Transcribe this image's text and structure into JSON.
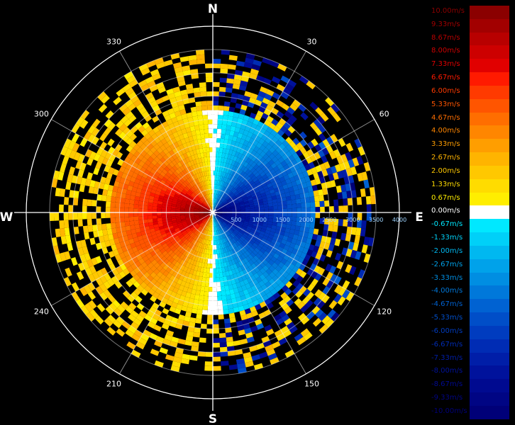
{
  "chart_data": {
    "type": "polar-heatmap",
    "cardinals": {
      "north": "N",
      "east": "E",
      "south": "S",
      "west": "W"
    },
    "bearing_ticks": [
      {
        "deg": 30,
        "label": "30"
      },
      {
        "deg": 60,
        "label": "60"
      },
      {
        "deg": 120,
        "label": "120"
      },
      {
        "deg": 150,
        "label": "150"
      },
      {
        "deg": 210,
        "label": "210"
      },
      {
        "deg": 240,
        "label": "240"
      },
      {
        "deg": 300,
        "label": "300"
      },
      {
        "deg": 330,
        "label": "330"
      }
    ],
    "range_rings": [
      "500",
      "1000",
      "1500",
      "2000",
      "2500",
      "3000",
      "3500",
      "4000"
    ],
    "max_range": 4000,
    "data_extent": 3500,
    "radial_velocity": {
      "approaching_bearing": 90,
      "receding_bearing": 270,
      "peak_receding": 10.0,
      "peak_approaching": -10.0
    },
    "colorbar": [
      {
        "label": "10.00m/s",
        "color": "#8b0000"
      },
      {
        "label": "9.33m/s",
        "color": "#a20000"
      },
      {
        "label": "8.67m/s",
        "color": "#b80000"
      },
      {
        "label": "8.00m/s",
        "color": "#cd0000"
      },
      {
        "label": "7.33m/s",
        "color": "#e10000"
      },
      {
        "label": "6.67m/s",
        "color": "#ff1a00"
      },
      {
        "label": "6.00m/s",
        "color": "#ff3a00"
      },
      {
        "label": "5.33m/s",
        "color": "#ff5500"
      },
      {
        "label": "4.67m/s",
        "color": "#ff6e00"
      },
      {
        "label": "4.00m/s",
        "color": "#ff8600"
      },
      {
        "label": "3.33m/s",
        "color": "#ff9e00"
      },
      {
        "label": "2.67m/s",
        "color": "#ffb400"
      },
      {
        "label": "2.00m/s",
        "color": "#ffc800"
      },
      {
        "label": "1.33m/s",
        "color": "#ffdc00"
      },
      {
        "label": "0.67m/s",
        "color": "#ffee00"
      },
      {
        "label": "0.00m/s",
        "color": "#ffffff"
      },
      {
        "label": "-0.67m/s",
        "color": "#00e8ff"
      },
      {
        "label": "-1.33m/s",
        "color": "#00d0f8"
      },
      {
        "label": "-2.00m/s",
        "color": "#00b8f0"
      },
      {
        "label": "-2.67m/s",
        "color": "#00a2ea"
      },
      {
        "label": "-3.33m/s",
        "color": "#008ee2"
      },
      {
        "label": "-4.00m/s",
        "color": "#0078da"
      },
      {
        "label": "-4.67m/s",
        "color": "#0062d2"
      },
      {
        "label": "-5.33m/s",
        "color": "#004ec8"
      },
      {
        "label": "-6.00m/s",
        "color": "#003cbf"
      },
      {
        "label": "-6.67m/s",
        "color": "#002cb4"
      },
      {
        "label": "-7.33m/s",
        "color": "#001ea8"
      },
      {
        "label": "-8.00m/s",
        "color": "#00129c"
      },
      {
        "label": "-8.67m/s",
        "color": "#000a90"
      },
      {
        "label": "-9.33m/s",
        "color": "#000584"
      },
      {
        "label": "-10.00m/s",
        "color": "#000078"
      }
    ],
    "grid": true
  }
}
